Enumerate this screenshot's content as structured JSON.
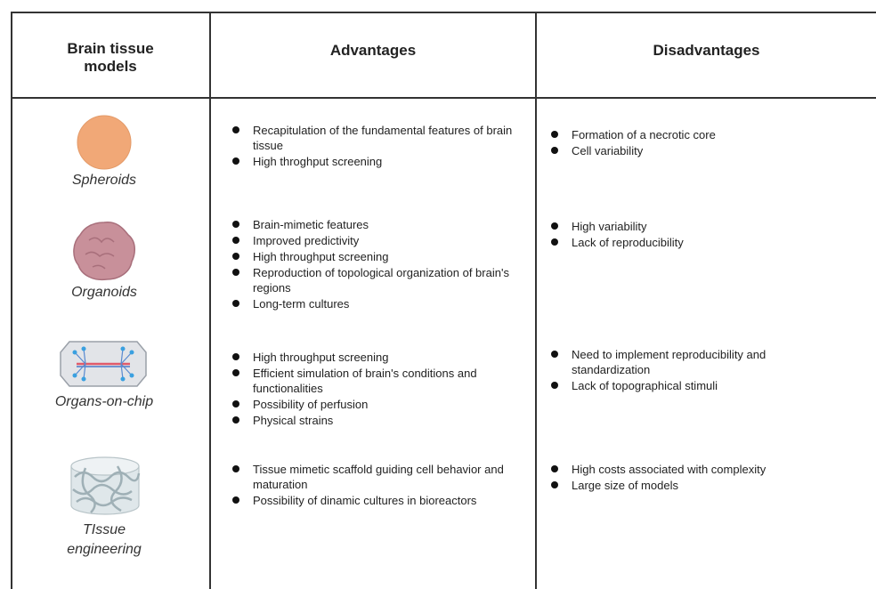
{
  "header": {
    "columns": [
      "Brain tissue models",
      "Advantages",
      "Disadvantages"
    ]
  },
  "rows": [
    {
      "model": "Spheroids",
      "advantages": [
        "Recapitulation of the fundamental features of brain tissue",
        "High throghput screening"
      ],
      "disadvantages": [
        "Formation of a necrotic core",
        "Cell variability"
      ]
    },
    {
      "model": "Organoids",
      "advantages": [
        "Brain-mimetic features",
        "Improved predictivity",
        "High throughput screening",
        "Reproduction of topological organization of brain's regions",
        "Long-term cultures"
      ],
      "disadvantages": [
        "High variability",
        "Lack of reproducibility"
      ]
    },
    {
      "model": "Organs-on-chip",
      "advantages": [
        "High throughput screening",
        "Efficient simulation of brain's conditions and functionalities",
        "Possibility of perfusion",
        "Physical strains"
      ],
      "disadvantages": [
        "Need to implement reproducibility and standardization",
        "Lack of topographical stimuli"
      ]
    },
    {
      "model": "TIssue engineering",
      "advantages": [
        "Tissue mimetic scaffold guiding cell behavior and maturation",
        "Possibility of dinamic cultures in bioreactors"
      ],
      "disadvantages": [
        "High costs associated with complexity",
        "Large size of models"
      ]
    }
  ]
}
